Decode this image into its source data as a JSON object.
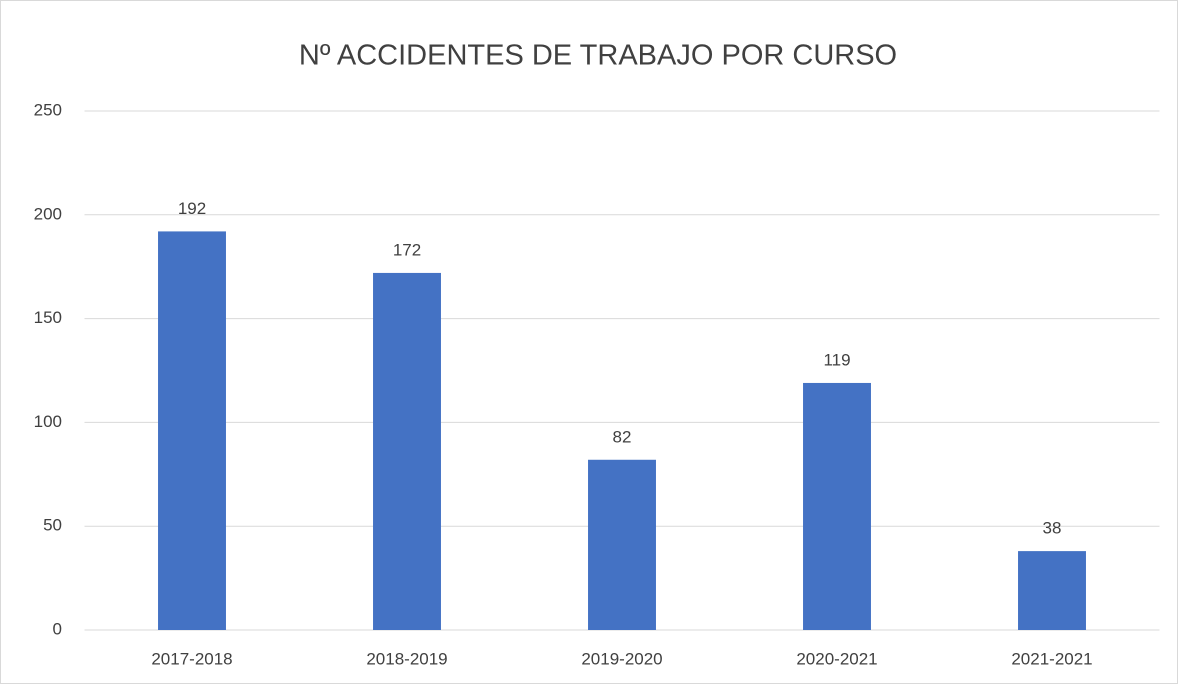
{
  "chart_data": {
    "type": "bar",
    "title": "Nº ACCIDENTES DE TRABAJO POR CURSO",
    "categories": [
      "2017-2018",
      "2018-2019",
      "2019-2020",
      "2020-2021",
      "2021-2021"
    ],
    "values": [
      192,
      172,
      82,
      119,
      38
    ],
    "color": "#4472c4",
    "ylim": [
      0,
      250
    ],
    "yticks": [
      0,
      50,
      100,
      150,
      200,
      250
    ],
    "grid": true
  }
}
